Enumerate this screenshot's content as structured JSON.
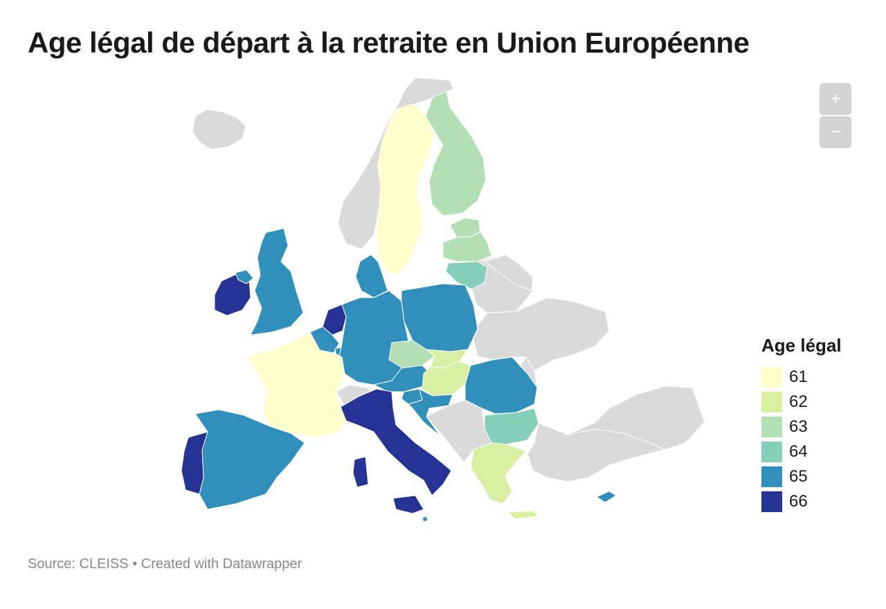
{
  "title": "Age légal de départ à la retraite en Union Européenne",
  "zoom": {
    "in_label": "+",
    "out_label": "−"
  },
  "legend": {
    "title": "Age légal",
    "items": [
      {
        "label": "61",
        "color": "#ffffcc"
      },
      {
        "label": "62",
        "color": "#d9f0a3"
      },
      {
        "label": "63",
        "color": "#b2dfb4"
      },
      {
        "label": "64",
        "color": "#86d0b9"
      },
      {
        "label": "65",
        "color": "#318fbb"
      },
      {
        "label": "66",
        "color": "#253494"
      }
    ]
  },
  "colors": {
    "non_eu": "#dadada",
    "background": "#ffffff",
    "border": "#ffffff"
  },
  "footer": {
    "source_label": "Source:",
    "source": "CLEISS",
    "separator": "•",
    "credit": "Created with Datawrapper"
  },
  "countries": [
    {
      "name": "Iceland",
      "value": null
    },
    {
      "name": "Norway",
      "value": null
    },
    {
      "name": "Sweden",
      "value": 61
    },
    {
      "name": "Finland",
      "value": 63
    },
    {
      "name": "Estonia",
      "value": 63
    },
    {
      "name": "Latvia",
      "value": 63
    },
    {
      "name": "Lithuania",
      "value": 64
    },
    {
      "name": "Denmark",
      "value": 65
    },
    {
      "name": "Ireland",
      "value": 66
    },
    {
      "name": "United Kingdom",
      "value": 65
    },
    {
      "name": "Netherlands",
      "value": 66
    },
    {
      "name": "Belgium",
      "value": 65
    },
    {
      "name": "Luxembourg",
      "value": 65
    },
    {
      "name": "Germany",
      "value": 65
    },
    {
      "name": "Poland",
      "value": 65
    },
    {
      "name": "Czechia",
      "value": 63
    },
    {
      "name": "Slovakia",
      "value": 62
    },
    {
      "name": "Austria",
      "value": 65
    },
    {
      "name": "Hungary",
      "value": 62
    },
    {
      "name": "Slovenia",
      "value": 65
    },
    {
      "name": "Croatia",
      "value": 65
    },
    {
      "name": "Romania",
      "value": 65
    },
    {
      "name": "Bulgaria",
      "value": 64
    },
    {
      "name": "Greece",
      "value": 62
    },
    {
      "name": "Cyprus",
      "value": 65
    },
    {
      "name": "Malta",
      "value": 65
    },
    {
      "name": "Italy",
      "value": 66
    },
    {
      "name": "France",
      "value": 61
    },
    {
      "name": "Spain",
      "value": 65
    },
    {
      "name": "Portugal",
      "value": 66
    },
    {
      "name": "Switzerland",
      "value": null
    },
    {
      "name": "Balkans",
      "value": null
    },
    {
      "name": "Belarus",
      "value": null
    },
    {
      "name": "Russia",
      "value": null
    },
    {
      "name": "Ukraine",
      "value": null
    },
    {
      "name": "Moldova",
      "value": null
    },
    {
      "name": "Turkey",
      "value": null
    }
  ]
}
